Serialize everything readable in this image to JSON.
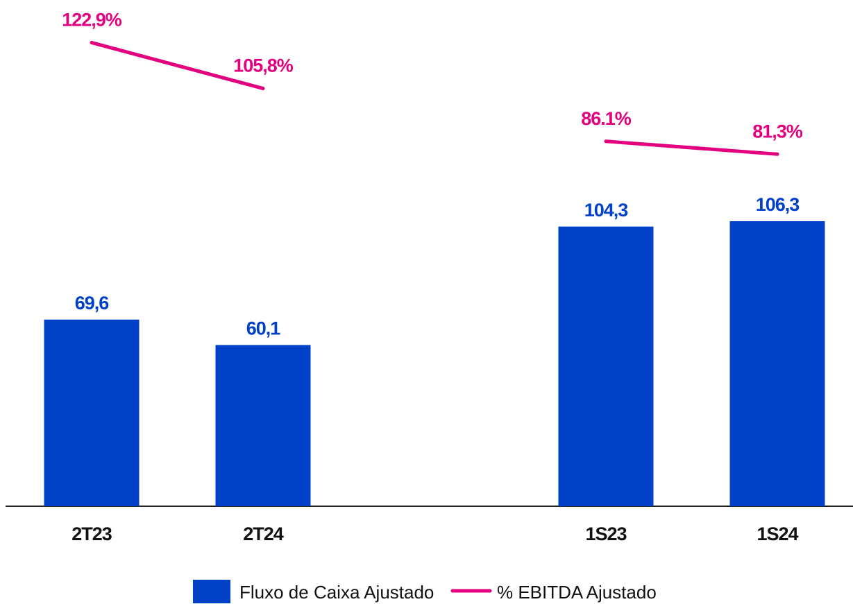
{
  "chart_data": {
    "type": "bar",
    "categories": [
      "2T23",
      "2T24",
      null,
      "1S23",
      "1S24"
    ],
    "series": [
      {
        "name": "Fluxo de Caixa Ajustado",
        "type": "bar",
        "color": "#0041c8",
        "values": [
          69.6,
          60.1,
          null,
          104.3,
          106.3
        ],
        "value_labels": [
          "69,6",
          "60,1",
          null,
          "104,3",
          "106,3"
        ]
      },
      {
        "name": "% EBITDA Ajustado",
        "type": "line",
        "axis": "y2",
        "color": "#e2007f",
        "values": [
          122.9,
          105.8,
          null,
          86.1,
          81.3
        ],
        "value_labels": [
          "122,9%",
          "105,8%",
          null,
          "86.1%",
          "81,3%"
        ]
      }
    ],
    "ylim": [
      0,
      180
    ],
    "y2lim": [
      -50,
      130
    ],
    "grid": false,
    "legend": "bottom"
  }
}
